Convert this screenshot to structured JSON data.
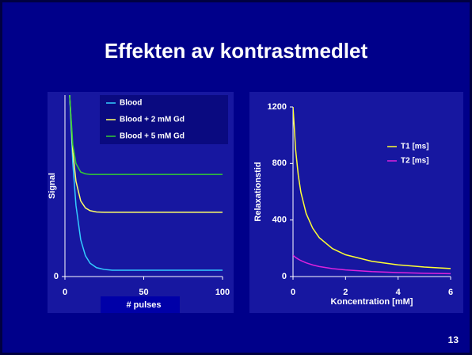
{
  "slide_title": "Effekten av kontrastmedlet",
  "page_number": "13",
  "chart_data": [
    {
      "type": "line",
      "xlabel": "# pulses",
      "ylabel": "Signal",
      "x": [
        3,
        5,
        7,
        10,
        13,
        16,
        20,
        25,
        30,
        50,
        75,
        100
      ],
      "xlim": [
        0,
        100
      ],
      "ylim": [
        0,
        1
      ],
      "xticks": [
        0,
        50,
        100
      ],
      "yticks": [
        0
      ],
      "legend": "upper right",
      "series": [
        {
          "name": "Blood",
          "color": "#33ccff",
          "values": [
            1.0,
            0.624,
            0.392,
            0.203,
            0.115,
            0.073,
            0.049,
            0.039,
            0.035,
            0.035,
            0.035,
            0.035
          ]
        },
        {
          "name": "Blood + 2 mM Gd",
          "color": "#ffff66",
          "values": [
            1.0,
            0.688,
            0.525,
            0.417,
            0.378,
            0.363,
            0.356,
            0.354,
            0.354,
            0.354,
            0.354,
            0.354
          ]
        },
        {
          "name": "Blood + 5 mM Gd",
          "color": "#33cc33",
          "values": [
            1.0,
            0.725,
            0.623,
            0.576,
            0.566,
            0.563,
            0.563,
            0.563,
            0.563,
            0.563,
            0.563,
            0.563
          ]
        }
      ]
    },
    {
      "type": "line",
      "xlabel": "Koncentration [mM]",
      "ylabel": "Relaxationstid",
      "x": [
        0,
        0.1,
        0.2,
        0.3,
        0.5,
        0.75,
        1,
        1.5,
        2,
        3,
        4,
        5,
        6
      ],
      "xlim": [
        0,
        6
      ],
      "ylim": [
        0,
        1200
      ],
      "xticks": [
        0,
        2,
        4,
        6
      ],
      "yticks": [
        0,
        400,
        800,
        1200
      ],
      "legend": "upper right",
      "series": [
        {
          "name": "T1 [ms]",
          "color": "#ffff33",
          "values": [
            1200,
            897,
            717,
            596,
            446,
            342,
            275,
            198,
            154,
            108,
            83,
            67,
            57
          ]
        },
        {
          "name": "T2 [ms]",
          "color": "#dd22dd",
          "values": [
            150,
            135,
            123,
            113,
            97,
            82,
            71,
            56,
            47,
            35,
            28,
            23,
            20
          ]
        }
      ]
    }
  ]
}
